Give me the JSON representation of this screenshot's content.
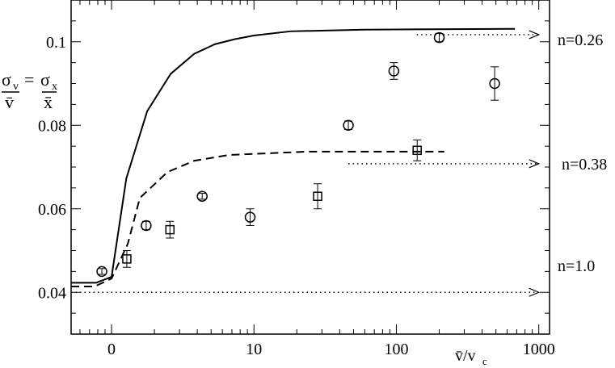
{
  "chart_data": {
    "type": "scatter",
    "xscale": "log",
    "xlim": [
      0.52,
      1190
    ],
    "ylim": [
      0.03,
      0.11
    ],
    "grid": false,
    "xlabel": "v̄/v",
    "xlabel_sub": "c",
    "ylabel": {
      "num1": "σ",
      "sub1": "v",
      "den1": "v̄",
      "eq": "=",
      "num2": "σ",
      "sub2": "x",
      "den2": "x̄"
    },
    "xticks": [
      {
        "value": 1,
        "label": "0"
      },
      {
        "value": 10,
        "label": "10"
      },
      {
        "value": 100,
        "label": "100"
      },
      {
        "value": 1000,
        "label": "1000"
      }
    ],
    "yticks": [
      {
        "value": 0.04,
        "label": "0.04"
      },
      {
        "value": 0.06,
        "label": "0.06"
      },
      {
        "value": 0.08,
        "label": "0.08"
      },
      {
        "value": 0.1,
        "label": "0.1"
      }
    ],
    "series": [
      {
        "marker": "circle",
        "points": [
          {
            "x": 0.855,
            "y": 0.045,
            "err": 0.0007
          },
          {
            "x": 1.75,
            "y": 0.056,
            "err": 0.001
          },
          {
            "x": 4.33,
            "y": 0.063,
            "err": 0.0007
          },
          {
            "x": 9.4,
            "y": 0.058,
            "err": 0.002
          },
          {
            "x": 46,
            "y": 0.08,
            "err": 0.001
          },
          {
            "x": 96,
            "y": 0.093,
            "err": 0.002
          },
          {
            "x": 200,
            "y": 0.101,
            "err": 0.001
          },
          {
            "x": 490,
            "y": 0.09,
            "err": 0.004
          }
        ]
      },
      {
        "marker": "square",
        "points": [
          {
            "x": 1.28,
            "y": 0.048,
            "err": 0.002
          },
          {
            "x": 2.57,
            "y": 0.055,
            "err": 0.002
          },
          {
            "x": 28,
            "y": 0.063,
            "err": 0.003
          },
          {
            "x": 140,
            "y": 0.074,
            "err": 0.0025
          }
        ]
      },
      {
        "line": "solid",
        "points": [
          [
            0.52,
            0.0423
          ],
          [
            0.78,
            0.0423
          ],
          [
            1,
            0.0437
          ],
          [
            1.27,
            0.0673
          ],
          [
            1.78,
            0.0834
          ],
          [
            2.6,
            0.0923
          ],
          [
            3.8,
            0.0971
          ],
          [
            5.3,
            0.0994
          ],
          [
            7.3,
            0.1006
          ],
          [
            10,
            0.1015
          ],
          [
            18,
            0.1025
          ],
          [
            59,
            0.1029
          ],
          [
            680,
            0.1031
          ]
        ]
      },
      {
        "line": "dashed",
        "points": [
          [
            0.52,
            0.0414
          ],
          [
            0.76,
            0.0414
          ],
          [
            1,
            0.0433
          ],
          [
            1.3,
            0.0516
          ],
          [
            1.58,
            0.0626
          ],
          [
            2.47,
            0.0688
          ],
          [
            3.8,
            0.0715
          ],
          [
            6.7,
            0.0729
          ],
          [
            23.7,
            0.0737
          ],
          [
            217,
            0.0737
          ]
        ]
      }
    ],
    "annotations": [
      {
        "label": "n=0.26",
        "y": 0.1017,
        "x_from": 139,
        "x_to": 1000
      },
      {
        "label": "n=0.38",
        "y": 0.0708,
        "x_from": 46,
        "x_to": 1000
      },
      {
        "label": "n=1.0",
        "y": 0.04,
        "x_from": 0.52,
        "x_to": 1000
      }
    ]
  }
}
